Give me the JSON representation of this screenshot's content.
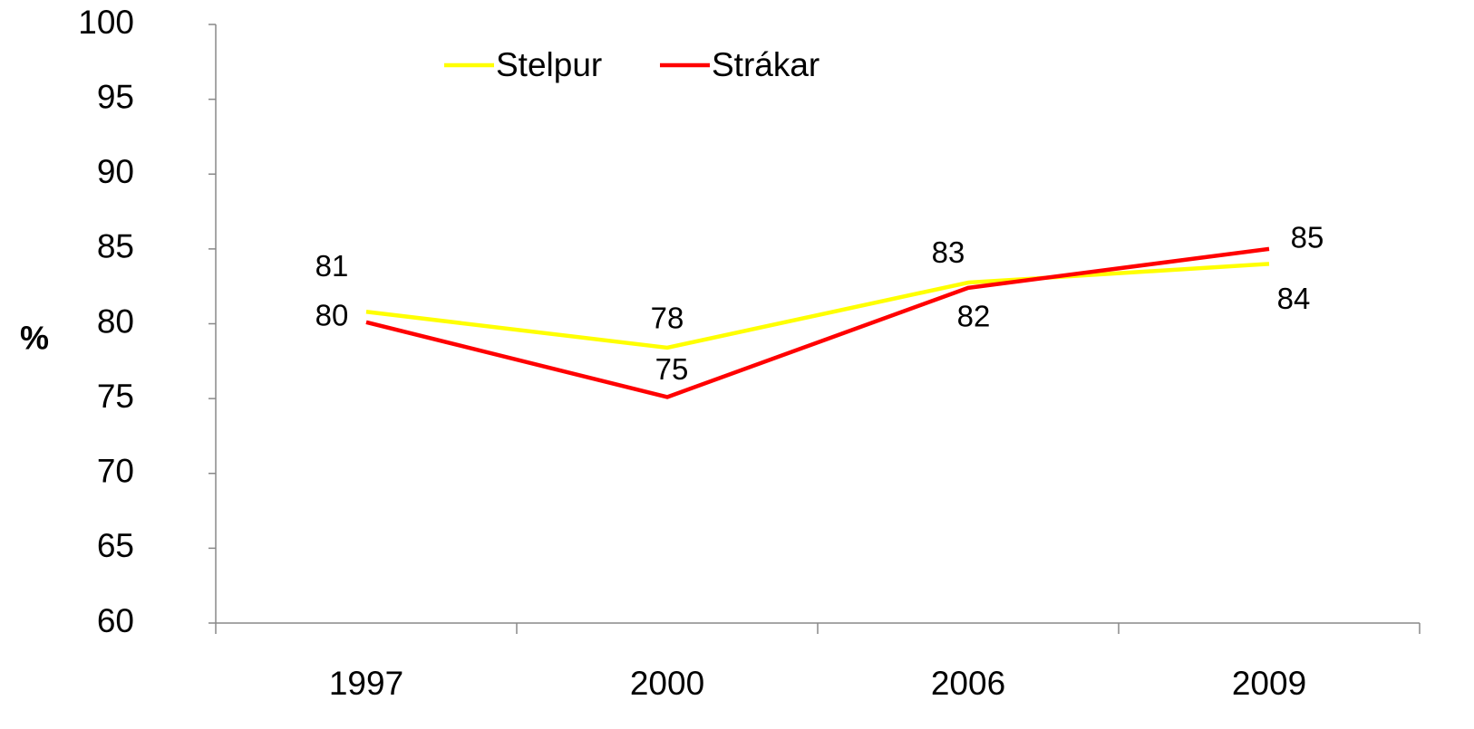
{
  "chart_data": {
    "type": "line",
    "y_label": "%",
    "categories": [
      "1997",
      "2000",
      "2006",
      "2009"
    ],
    "series": [
      {
        "name": "Stelpur",
        "color": "#ffff00",
        "values": [
          80.8,
          78.4,
          82.75,
          84.0
        ],
        "value_labels": [
          "81",
          "78",
          "83",
          "84"
        ]
      },
      {
        "name": "Strákar",
        "color": "#ff0000",
        "values": [
          80.1,
          75.1,
          82.4,
          85.0
        ],
        "value_labels": [
          "80",
          "75",
          "82",
          "85"
        ]
      }
    ],
    "ylim": [
      60,
      100
    ],
    "yticks": [
      60,
      65,
      70,
      75,
      80,
      85,
      90,
      95,
      100
    ],
    "grid": false
  }
}
